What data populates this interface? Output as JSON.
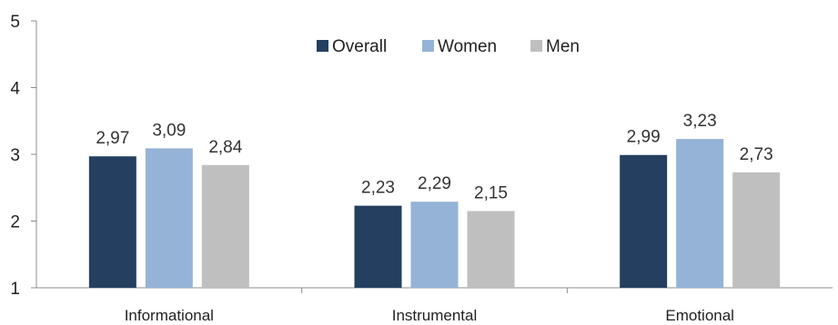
{
  "chart_data": {
    "type": "bar",
    "title": "",
    "xlabel": "",
    "ylabel": "",
    "categories": [
      "Informational",
      "Instrumental",
      "Emotional"
    ],
    "series": [
      {
        "name": "Overall",
        "color": "#243f60",
        "values": [
          2.97,
          2.23,
          2.99
        ],
        "labels": [
          "2,97",
          "2,23",
          "2,99"
        ]
      },
      {
        "name": "Women",
        "color": "#95b3d7",
        "values": [
          3.09,
          2.29,
          3.23
        ],
        "labels": [
          "3,09",
          "2,29",
          "3,23"
        ]
      },
      {
        "name": "Men",
        "color": "#bfbfbf",
        "values": [
          2.84,
          2.15,
          2.73
        ],
        "labels": [
          "2,84",
          "2,15",
          "2,73"
        ]
      }
    ],
    "ylim": [
      1,
      5
    ],
    "yticks": [
      "1",
      "2",
      "3",
      "4",
      "5"
    ],
    "grid": false,
    "legend_position": "top-center"
  }
}
